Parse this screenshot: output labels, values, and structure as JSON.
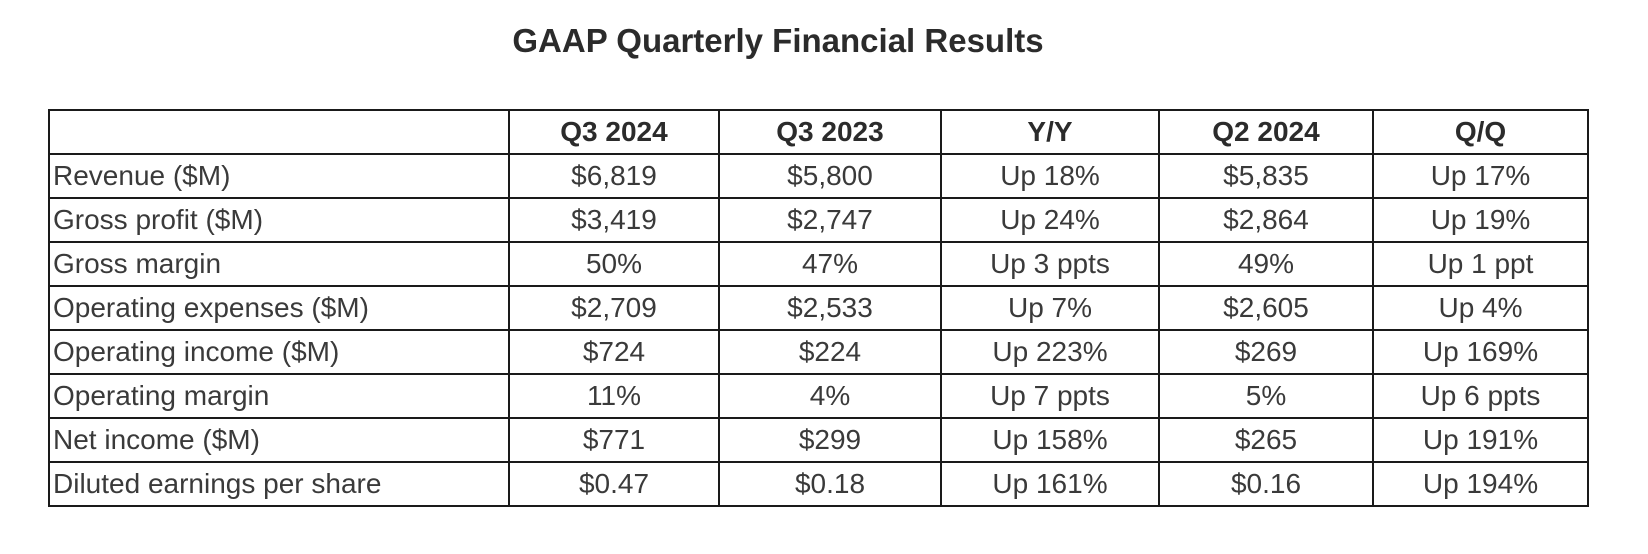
{
  "page": {
    "title": "GAAP Quarterly Financial Results"
  },
  "colors": {
    "background": "#ffffff",
    "border": "#1a1a1a",
    "title_text": "#2b2b2b",
    "cell_text": "#3a3a3a"
  },
  "chart_data": {
    "type": "table",
    "title": "GAAP Quarterly Financial Results",
    "columns": [
      "",
      "Q3 2024",
      "Q3 2023",
      "Y/Y",
      "Q2 2024",
      "Q/Q"
    ],
    "rows": [
      [
        "Revenue ($M)",
        "$6,819",
        "$5,800",
        "Up 18%",
        "$5,835",
        "Up 17%"
      ],
      [
        "Gross profit ($M)",
        "$3,419",
        "$2,747",
        "Up 24%",
        "$2,864",
        "Up 19%"
      ],
      [
        "Gross margin",
        "50%",
        "47%",
        "Up 3 ppts",
        "49%",
        "Up 1 ppt"
      ],
      [
        "Operating expenses ($M)",
        "$2,709",
        "$2,533",
        "Up 7%",
        "$2,605",
        "Up 4%"
      ],
      [
        "Operating income ($M)",
        "$724",
        "$224",
        "Up 223%",
        "$269",
        "Up 169%"
      ],
      [
        "Operating margin",
        "11%",
        "4%",
        "Up 7 ppts",
        "5%",
        "Up 6 ppts"
      ],
      [
        "Net income ($M)",
        "$771",
        "$299",
        "Up 158%",
        "$265",
        "Up 191%"
      ],
      [
        "Diluted earnings per share",
        "$0.47",
        "$0.18",
        "Up 161%",
        "$0.16",
        "Up 194%"
      ]
    ]
  }
}
